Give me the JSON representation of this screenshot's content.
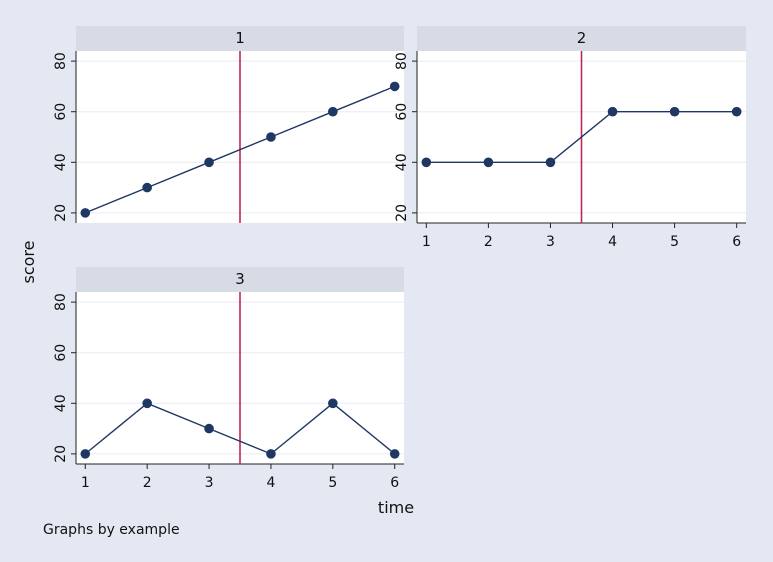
{
  "chart_data": {
    "type": "line",
    "layout": "small-multiples",
    "xlabel": "time",
    "ylabel": "score",
    "note": "Graphs by example",
    "x": [
      1,
      2,
      3,
      4,
      5,
      6
    ],
    "xlim": [
      0.85,
      6.15
    ],
    "ylim": [
      16,
      84
    ],
    "yticks": [
      20,
      40,
      60,
      80
    ],
    "reference_line_x": 3.5,
    "marker_color": "#1f3763",
    "line_color": "#1f3763",
    "reference_color": "#c1265a",
    "panels": [
      {
        "title": "1",
        "values": [
          20,
          30,
          40,
          50,
          60,
          70
        ],
        "show_x_axis": false
      },
      {
        "title": "2",
        "values": [
          40,
          40,
          40,
          60,
          60,
          60
        ],
        "show_x_axis": true
      },
      {
        "title": "3",
        "values": [
          20,
          40,
          30,
          20,
          40,
          20
        ],
        "show_x_axis": true
      }
    ]
  }
}
